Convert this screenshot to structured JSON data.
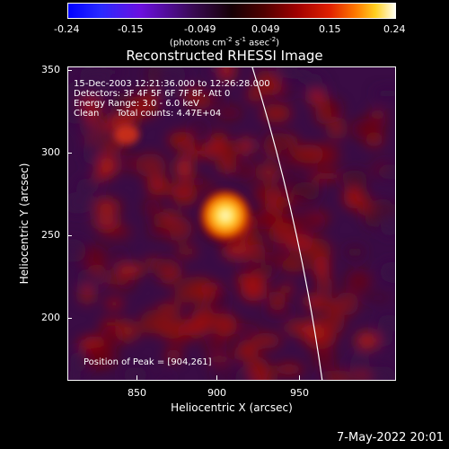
{
  "colorbar": {
    "ticks": [
      "-0.24",
      "-0.15",
      "-0.049",
      "0.049",
      "0.15",
      "0.24"
    ],
    "units_main": "(photons cm",
    "units_exp1": "-2",
    "units_mid1": " s",
    "units_exp2": "-1",
    "units_mid2": " asec",
    "units_exp3": "-2",
    "units_end": ")"
  },
  "title": "Reconstructed RHESSI Image",
  "info": {
    "time": "15-Dec-2003 12:21:36.000 to 12:26:28.000",
    "detectors": "Detectors: 3F 4F 5F 6F 7F 8F, Att 0",
    "energy": "Energy Range: 3.0 - 6.0 keV",
    "algorithm": "Clean",
    "counts": "Total counts: 4.47E+04"
  },
  "peak": "Position of Peak = [904,261]",
  "axes": {
    "xlabel": "Heliocentric X (arcsec)",
    "ylabel": "Heliocentric Y (arcsec)",
    "xticks": [
      "850",
      "900",
      "950"
    ],
    "yticks": [
      "350",
      "300",
      "250",
      "200"
    ]
  },
  "footer": "7-May-2022 20:01"
}
